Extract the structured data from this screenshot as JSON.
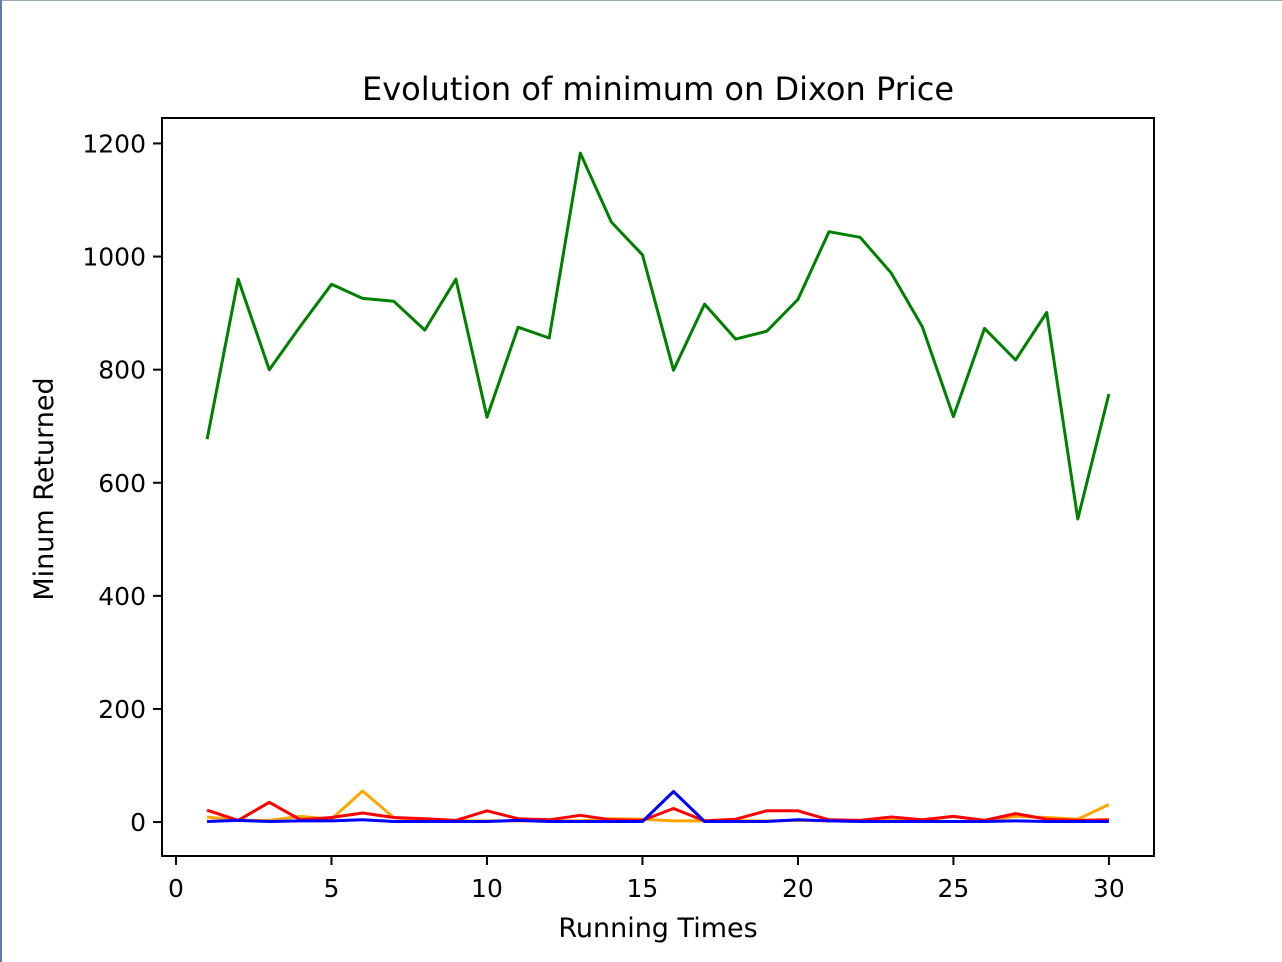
{
  "chart_data": {
    "type": "line",
    "title": "Evolution of minimum on Dixon Price",
    "xlabel": "Running Times",
    "ylabel": "Minum Returned",
    "xlim": [
      -0.45,
      31.45
    ],
    "ylim": [
      -60,
      1245
    ],
    "xticks": [
      0,
      5,
      10,
      15,
      20,
      25,
      30
    ],
    "yticks": [
      0,
      200,
      400,
      600,
      800,
      1000,
      1200
    ],
    "grid": false,
    "legend": "none",
    "x": [
      1,
      2,
      3,
      4,
      5,
      6,
      7,
      8,
      9,
      10,
      11,
      12,
      13,
      14,
      15,
      16,
      17,
      18,
      19,
      20,
      21,
      22,
      23,
      24,
      25,
      26,
      27,
      28,
      29,
      30
    ],
    "series": [
      {
        "color": "#008000",
        "values": [
          677,
          960,
          800,
          877,
          951,
          926,
          921,
          870,
          960,
          716,
          875,
          856,
          1183,
          1061,
          1003,
          799,
          916,
          854,
          868,
          924,
          1044,
          1034,
          971,
          876,
          717,
          873,
          817,
          901,
          536,
          757
        ]
      },
      {
        "color": "#ffa500",
        "values": [
          9,
          3,
          3,
          10,
          5,
          55,
          8,
          2,
          2,
          2,
          2,
          2,
          2,
          6,
          5,
          2,
          2,
          2,
          2,
          3,
          2,
          2,
          3,
          3,
          10,
          3,
          10,
          8,
          5,
          31
        ]
      },
      {
        "color": "#ff0000",
        "values": [
          21,
          3,
          35,
          4,
          8,
          16,
          8,
          6,
          3,
          20,
          6,
          4,
          12,
          4,
          3,
          24,
          2,
          5,
          20,
          20,
          4,
          3,
          9,
          4,
          10,
          3,
          15,
          5,
          3,
          4
        ]
      },
      {
        "color": "#0000ff",
        "values": [
          1,
          3,
          1,
          2,
          2,
          4,
          1,
          1,
          1,
          1,
          3,
          1,
          1,
          1,
          1,
          54,
          1,
          1,
          1,
          4,
          2,
          1,
          1,
          1,
          1,
          1,
          2,
          1,
          1,
          1
        ]
      }
    ]
  }
}
